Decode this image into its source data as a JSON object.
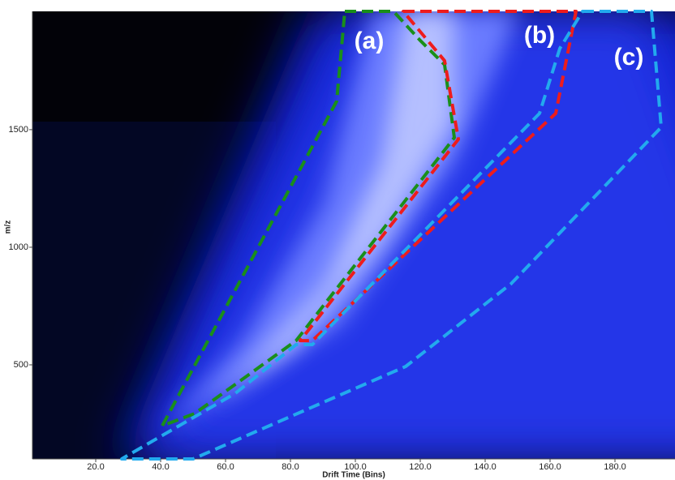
{
  "chart_data": {
    "type": "region-map",
    "x_label": "Drift Time (Bins)",
    "y_label": "m/z",
    "xlim": [
      0.5,
      198.5
    ],
    "ylim": [
      100,
      2003
    ],
    "xticks": [
      {
        "value": 20,
        "label": "20.0"
      },
      {
        "value": 40,
        "label": "40.0"
      },
      {
        "value": 60,
        "label": "60.0"
      },
      {
        "value": 80,
        "label": "80.0"
      },
      {
        "value": 100,
        "label": "100.0"
      },
      {
        "value": 120,
        "label": "120.0"
      },
      {
        "value": 140,
        "label": "140.0"
      },
      {
        "value": 160,
        "label": "160.0"
      },
      {
        "value": 180,
        "label": "180.0"
      }
    ],
    "yticks": [
      500,
      1000,
      1500
    ],
    "regions": [
      {
        "name": "(a)",
        "color": "#1a8f1a",
        "x": [
          96.75,
          111.75,
          120,
          127.5,
          130.5,
          81.75,
          50.5,
          40.5,
          94.25
        ],
        "y": [
          2003,
          2003,
          1879,
          1776,
          1466,
          603,
          293,
          241,
          1621
        ]
      },
      {
        "name": "(b)",
        "color": "#ee1c1c",
        "x": [
          114.75,
          168,
          161.75,
          86.75,
          83,
          131.75,
          127.5
        ],
        "y": [
          2003,
          2003,
          1569,
          603,
          603,
          1459,
          1793
        ]
      },
      {
        "name": "(c)",
        "color": "#22aaee",
        "x": [
          170,
          191.25,
          194.25,
          148,
          115.5,
          50,
          28,
          63,
          81.75,
          86.75,
          156.75,
          163
        ],
        "y": [
          2003,
          2003,
          1510,
          845,
          493,
          100,
          100,
          379,
          586,
          586,
          1569,
          1845
        ]
      }
    ]
  }
}
